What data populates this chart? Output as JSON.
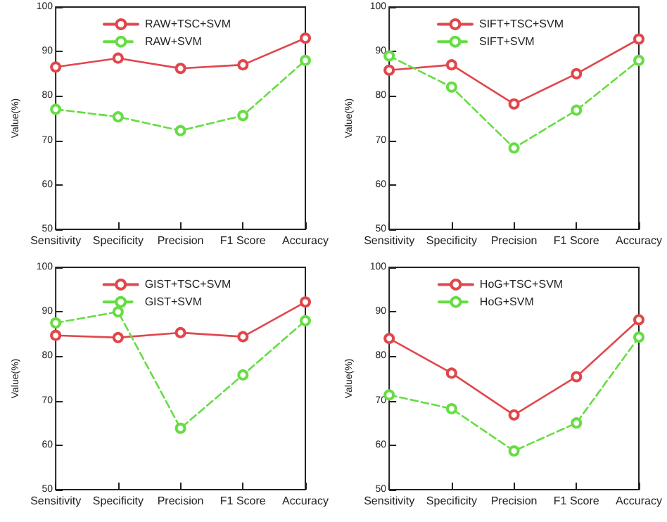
{
  "chart_data": [
    {
      "type": "line",
      "ylabel": "Value(%)",
      "categories": [
        "Sensitivity",
        "Specificity",
        "Precision",
        "F1 Score",
        "Accuracy"
      ],
      "ylim": [
        50,
        100
      ],
      "yticks": [
        50,
        60,
        70,
        80,
        90,
        100
      ],
      "grid": false,
      "legend": "top",
      "marker": "circle",
      "series": [
        {
          "name": "RAW+TSC+SVM",
          "color": "#e0474c",
          "line_style": "solid",
          "values": [
            86.5,
            88.5,
            86.2,
            87,
            93
          ]
        },
        {
          "name": "RAW+SVM",
          "color": "#66dd44",
          "line_style": "dashed",
          "values": [
            77,
            75.3,
            72.2,
            75.6,
            88
          ]
        }
      ]
    },
    {
      "type": "line",
      "ylabel": "Value(%)",
      "categories": [
        "Sensitivity",
        "Specificity",
        "Precision",
        "F1 Score",
        "Accuracy"
      ],
      "ylim": [
        50,
        100
      ],
      "yticks": [
        50,
        60,
        70,
        80,
        90,
        100
      ],
      "grid": false,
      "legend": "top",
      "marker": "circle",
      "series": [
        {
          "name": "SIFT+TSC+SVM",
          "color": "#e0474c",
          "line_style": "solid",
          "values": [
            85.8,
            87,
            78.2,
            85,
            92.8
          ]
        },
        {
          "name": "SIFT+SVM",
          "color": "#66dd44",
          "line_style": "dashed",
          "values": [
            89,
            82,
            68.3,
            76.8,
            88
          ]
        }
      ]
    },
    {
      "type": "line",
      "ylabel": "Value(%)",
      "categories": [
        "Sensitivity",
        "Specificity",
        "Precision",
        "F1 Score",
        "Accuracy"
      ],
      "ylim": [
        50,
        100
      ],
      "yticks": [
        50,
        60,
        70,
        80,
        90,
        100
      ],
      "grid": false,
      "legend": "top",
      "marker": "circle",
      "series": [
        {
          "name": "GIST+TSC+SVM",
          "color": "#e0474c",
          "line_style": "solid",
          "values": [
            84.7,
            84.2,
            85.3,
            84.4,
            92.2
          ]
        },
        {
          "name": "GIST+SVM",
          "color": "#66dd44",
          "line_style": "dashed",
          "values": [
            87.5,
            90,
            63.8,
            75.8,
            88
          ]
        }
      ]
    },
    {
      "type": "line",
      "ylabel": "Value(%)",
      "categories": [
        "Sensitivity",
        "Specificity",
        "Precision",
        "F1 Score",
        "Accuracy"
      ],
      "ylim": [
        50,
        100
      ],
      "yticks": [
        50,
        60,
        70,
        80,
        90,
        100
      ],
      "grid": false,
      "legend": "top",
      "marker": "circle",
      "series": [
        {
          "name": "HoG+TSC+SVM",
          "color": "#e0474c",
          "line_style": "solid",
          "values": [
            84,
            76.2,
            66.8,
            75.4,
            88.2
          ]
        },
        {
          "name": "HoG+SVM",
          "color": "#66dd44",
          "line_style": "dashed",
          "values": [
            71.3,
            68.2,
            58.7,
            65,
            84.3
          ]
        }
      ]
    }
  ]
}
